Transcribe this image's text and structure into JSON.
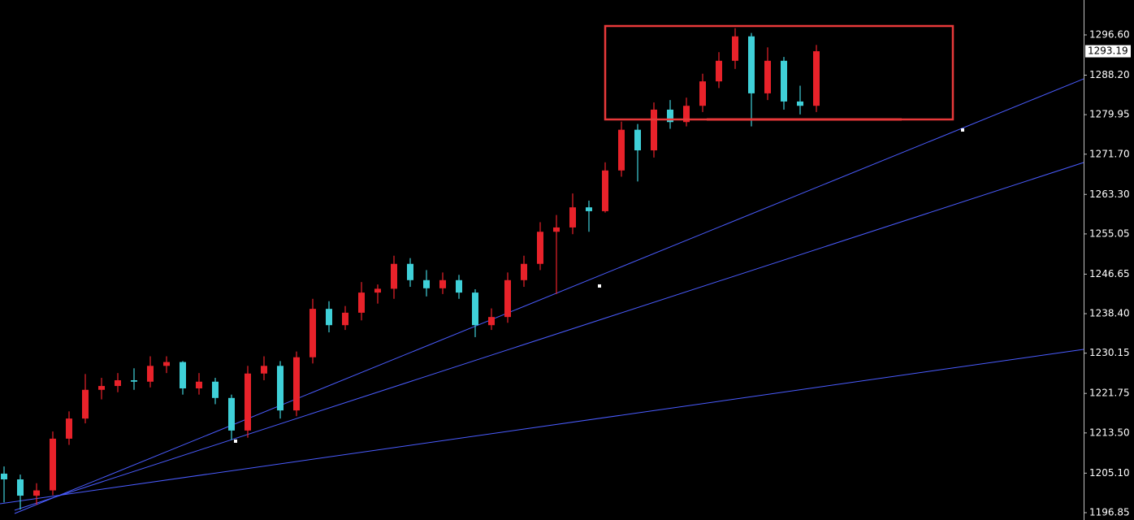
{
  "chart_data": {
    "type": "candlestick",
    "up_color": "#e8222a",
    "down_color": "#3fd0d8",
    "open": [
      1205.0,
      1203.8,
      1200.4,
      1201.5,
      1212.3,
      1216.5,
      1222.5,
      1223.3,
      1224.5,
      1224.2,
      1227.5,
      1228.3,
      1222.8,
      1224.2,
      1220.8,
      1214.0,
      1225.9,
      1227.5,
      1218.2,
      1229.3,
      1239.4,
      1236.0,
      1238.6,
      1242.8,
      1243.6,
      1248.8,
      1245.4,
      1243.7,
      1245.4,
      1242.8,
      1236.0,
      1237.7,
      1245.4,
      1248.8,
      1255.5,
      1256.4,
      1260.6,
      1259.8,
      1268.3,
      1276.8,
      1272.5,
      1281.0,
      1278.4,
      1281.8,
      1286.9,
      1291.2,
      1296.3,
      1284.4,
      1291.2,
      1282.7,
      1281.8
    ],
    "high": [
      1206.5,
      1204.8,
      1203.0,
      1213.8,
      1218.0,
      1225.8,
      1225.0,
      1226.0,
      1227.0,
      1229.5,
      1229.5,
      1228.5,
      1226.0,
      1225.0,
      1221.5,
      1227.5,
      1229.5,
      1228.5,
      1230.5,
      1241.5,
      1241.0,
      1240.0,
      1245.0,
      1244.5,
      1250.5,
      1250.0,
      1247.5,
      1247.0,
      1246.5,
      1243.5,
      1239.5,
      1247.0,
      1250.5,
      1257.5,
      1259.0,
      1263.5,
      1262.0,
      1270.0,
      1278.5,
      1278.0,
      1282.5,
      1283.0,
      1283.5,
      1288.5,
      1293.0,
      1298.0,
      1297.0,
      1294.0,
      1292.0,
      1286.0,
      1294.5
    ],
    "low": [
      1199.0,
      1197.5,
      1198.5,
      1200.5,
      1211.0,
      1215.5,
      1220.5,
      1222.0,
      1222.5,
      1223.0,
      1226.0,
      1221.5,
      1221.5,
      1219.5,
      1212.0,
      1212.5,
      1224.5,
      1216.5,
      1217.0,
      1228.0,
      1234.5,
      1235.0,
      1237.0,
      1240.5,
      1241.5,
      1244.0,
      1242.0,
      1242.5,
      1241.5,
      1233.5,
      1235.0,
      1236.5,
      1244.0,
      1247.5,
      1242.5,
      1255.0,
      1255.5,
      1259.5,
      1267.0,
      1266.0,
      1271.0,
      1277.0,
      1277.5,
      1280.5,
      1285.5,
      1289.5,
      1277.5,
      1283.0,
      1281.0,
      1280.0,
      1280.5
    ],
    "close": [
      1203.8,
      1200.4,
      1201.5,
      1212.3,
      1216.5,
      1222.5,
      1223.3,
      1224.5,
      1224.2,
      1227.5,
      1228.3,
      1222.8,
      1224.2,
      1220.8,
      1214.0,
      1225.9,
      1227.5,
      1218.2,
      1229.3,
      1239.4,
      1236.0,
      1238.6,
      1242.8,
      1243.6,
      1248.8,
      1245.4,
      1243.7,
      1245.4,
      1242.8,
      1236.0,
      1237.7,
      1245.4,
      1248.8,
      1255.5,
      1256.4,
      1260.6,
      1259.8,
      1268.3,
      1276.8,
      1272.5,
      1281.0,
      1278.4,
      1281.8,
      1286.9,
      1291.2,
      1296.3,
      1284.4,
      1291.2,
      1282.7,
      1281.8,
      1293.19
    ],
    "ylim": [
      1195.32,
      1303.89
    ],
    "yticks": [
      {
        "value": 1296.6,
        "label": "1296.60"
      },
      {
        "value": 1288.2,
        "label": "1288.20"
      },
      1279.95,
      {
        "value": 1271.7,
        "label": "1271.70"
      },
      {
        "value": 1263.3,
        "label": "1263.30"
      },
      1255.05,
      1246.65,
      {
        "value": 1238.4,
        "label": "1238.40"
      },
      1230.15,
      1221.75,
      {
        "value": 1213.5,
        "label": "1213.50"
      },
      {
        "value": 1205.1,
        "label": "1205.10"
      },
      1196.85
    ],
    "last_price": 1293.19,
    "trendline_color": "#4a5cff",
    "trendlines": [
      {
        "x": [
          0.65,
          66.45
        ],
        "y": [
          1196.68,
          1287.43
        ],
        "anchors_x": [
          14.25,
          36.65,
          59.0
        ],
        "anchors_y": [
          1211.78,
          1244.18,
          1276.75
        ]
      },
      {
        "x": [
          0.65,
          66.45
        ],
        "y": [
          1197.36,
          1269.96
        ]
      },
      {
        "x": [
          -0.25,
          66.45
        ],
        "y": [
          1198.71,
          1230.95
        ]
      }
    ],
    "box_color": "#e8393a",
    "box": {
      "x": [
        37.0,
        58.4
      ],
      "y": [
        1278.95,
        1298.46
      ]
    },
    "support_line": {
      "x": [
        43.25,
        55.25
      ],
      "y": 1278.95
    }
  }
}
